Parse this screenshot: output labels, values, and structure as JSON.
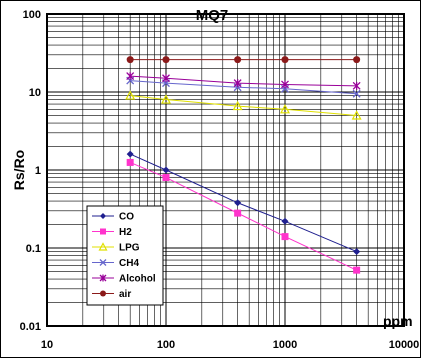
{
  "chart_data": {
    "type": "line",
    "title": "MQ7",
    "xlabel": "ppm",
    "ylabel": "Rs/Ro",
    "x_scale": "log",
    "y_scale": "log",
    "xlim": [
      10,
      10000
    ],
    "ylim": [
      0.01,
      100
    ],
    "x_tick_labels": [
      "10",
      "100",
      "1000",
      "10000"
    ],
    "y_tick_labels": [
      "100",
      "10",
      "1",
      "0.1",
      "0.01"
    ],
    "grid": true,
    "legend_position": "lower-left",
    "x": [
      50,
      100,
      400,
      1000,
      4000
    ],
    "series": [
      {
        "name": "CO",
        "color": "#1f1f8f",
        "marker": "diamond",
        "values": [
          1.6,
          1.0,
          0.38,
          0.22,
          0.09
        ]
      },
      {
        "name": "H2",
        "color": "#ff33cc",
        "marker": "square",
        "values": [
          1.25,
          0.8,
          0.28,
          0.14,
          0.052
        ]
      },
      {
        "name": "LPG",
        "color": "#e0e000",
        "marker": "triangle",
        "values": [
          9,
          8,
          6.6,
          6,
          5
        ]
      },
      {
        "name": "CH4",
        "color": "#6666cc",
        "marker": "x",
        "values": [
          14,
          13,
          11.5,
          11,
          9.5
        ]
      },
      {
        "name": "Alcohol",
        "color": "#990099",
        "marker": "star",
        "values": [
          16,
          15,
          13,
          12.5,
          12
        ]
      },
      {
        "name": "air",
        "color": "#8b1a1a",
        "marker": "circle",
        "values": [
          26,
          26,
          26,
          26,
          26
        ]
      }
    ]
  }
}
